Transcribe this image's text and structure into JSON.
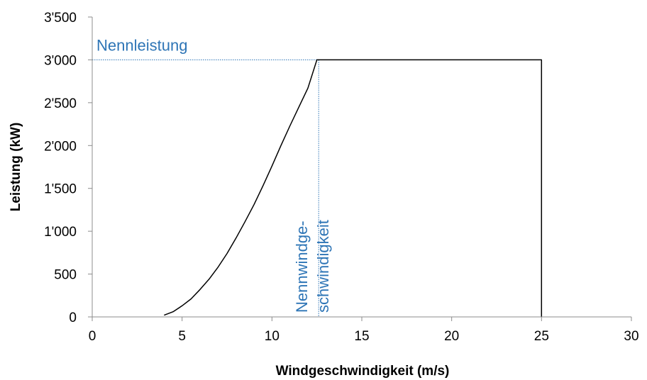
{
  "chart_data": {
    "type": "line",
    "xlabel": "Windgeschwindigkeit (m/s)",
    "ylabel": "Leistung (kW)",
    "xlim": [
      0,
      30
    ],
    "ylim": [
      0,
      3500
    ],
    "x_ticks": [
      0,
      5,
      10,
      15,
      20,
      25,
      30
    ],
    "y_ticks": [
      0,
      500,
      1000,
      1500,
      2000,
      2500,
      3000,
      3500
    ],
    "x_tick_labels": [
      "0",
      "5",
      "10",
      "15",
      "20",
      "25",
      "30"
    ],
    "y_tick_labels": [
      "0",
      "500",
      "1'000",
      "1'500",
      "2'000",
      "2'500",
      "3'000",
      "3'500"
    ],
    "grid": false,
    "legend": "none",
    "series": [
      {
        "x": [
          4,
          4.5,
          5,
          5.5,
          6,
          6.5,
          7,
          7.5,
          8,
          8.5,
          9,
          9.5,
          10,
          10.5,
          11,
          11.5,
          12,
          12.5,
          12.5,
          25,
          25
        ],
        "y": [
          20,
          60,
          130,
          210,
          320,
          440,
          580,
          740,
          920,
          1110,
          1310,
          1530,
          1760,
          2000,
          2230,
          2450,
          2670,
          3000,
          3000,
          3000,
          0
        ],
        "color": "#000000"
      }
    ],
    "annotations": {
      "rated_power_label": "Nennleistung",
      "rated_power_value": 3000,
      "rated_speed_label_line1": "Nennwindge-",
      "rated_speed_label_line2": "schwindigkeit",
      "rated_speed_value": 12.6,
      "annotation_color": "#2e75b6"
    }
  }
}
